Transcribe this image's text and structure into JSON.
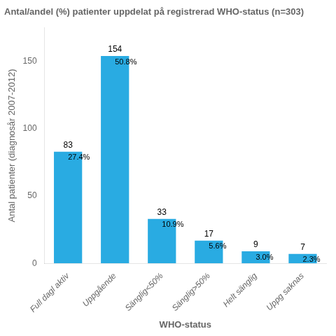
{
  "chart_data": {
    "type": "bar",
    "title": "Antal/andel (%) patienter uppdelat på registrerad WHO-status (n=303)",
    "xlabel": "WHO-status",
    "ylabel": "Antal patienter (diagnosår 2007-2012)",
    "categories": [
      "Full dagl aktiv",
      "Uppgående",
      "Sänglig<50%",
      "Sänglig>50%",
      "Helt sänglig",
      "Uppg saknas"
    ],
    "values": [
      83,
      154,
      33,
      17,
      9,
      7
    ],
    "data_labels": true,
    "percentages": [
      27.4,
      50.8,
      10.9,
      5.6,
      3.0,
      2.3
    ],
    "percentage_labels": [
      "27.4%",
      "50.8%",
      "10.9%",
      "5.6%",
      "3.0%",
      "2.3%"
    ],
    "color": "#29ABE2",
    "ylim": [
      0,
      175
    ],
    "yticks": [
      0,
      50,
      100,
      150
    ],
    "grid": false
  }
}
